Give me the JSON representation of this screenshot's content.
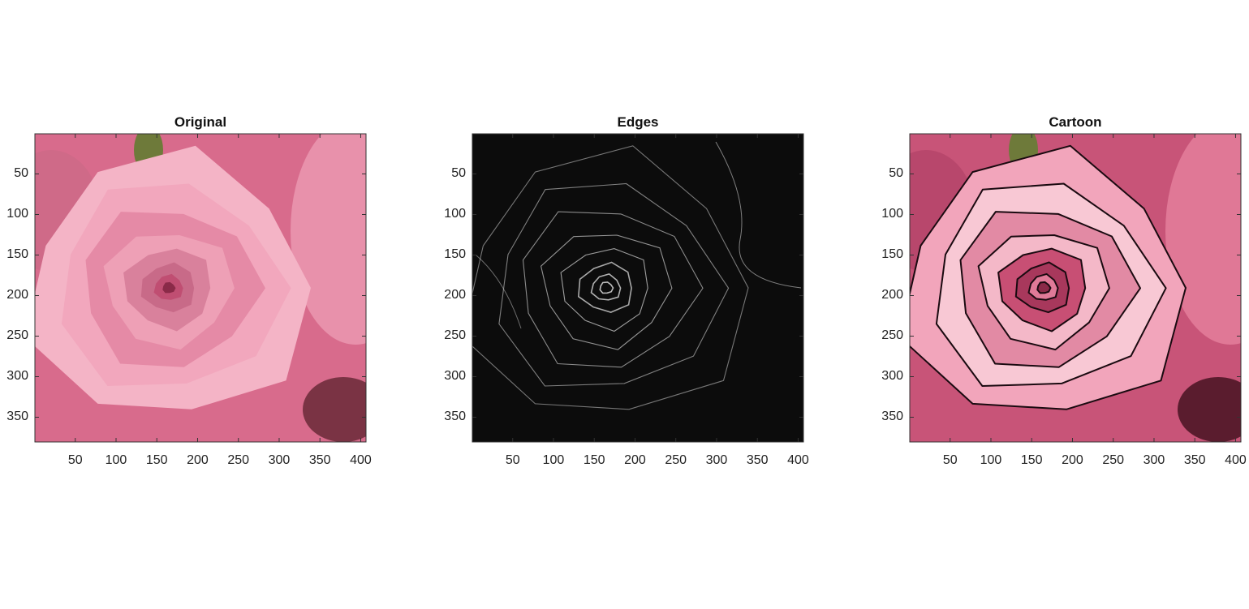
{
  "panels": [
    {
      "title": "Original",
      "style": "photo"
    },
    {
      "title": "Edges",
      "style": "edges"
    },
    {
      "title": "Cartoon",
      "style": "cartoon"
    }
  ],
  "axes": {
    "x_ticks": [
      "50",
      "100",
      "150",
      "200",
      "250",
      "300",
      "350",
      "400"
    ],
    "y_ticks": [
      "50",
      "100",
      "150",
      "200",
      "250",
      "300",
      "350"
    ],
    "xlim": [
      0.5,
      406.5
    ],
    "ylim": [
      0.5,
      380.5
    ]
  },
  "colors": {
    "petal_light": "#f4b4c6",
    "petal_mid": "#e58aa6",
    "petal_dark": "#c04e72",
    "background_rose": "#d86b8c",
    "leaf": "#6e7a3a",
    "edges_bg": "#0c0c0c",
    "edge_line": "#cfcfcf"
  }
}
